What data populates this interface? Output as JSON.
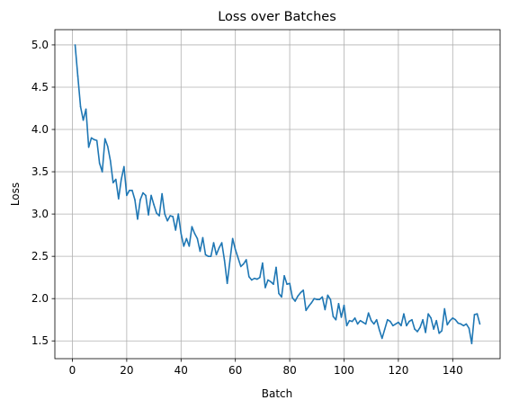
{
  "chart_data": {
    "type": "line",
    "title": "Loss over Batches",
    "xlabel": "Batch",
    "ylabel": "Loss",
    "xlim": [
      -6.45,
      157.45
    ],
    "ylim": [
      1.29,
      5.18
    ],
    "xticks": [
      0,
      20,
      40,
      60,
      80,
      100,
      120,
      140
    ],
    "yticks": [
      1.5,
      2.0,
      2.5,
      3.0,
      3.5,
      4.0,
      4.5,
      5.0
    ],
    "ytick_labels": [
      "1.5",
      "2.0",
      "2.5",
      "3.0",
      "3.5",
      "4.0",
      "4.5",
      "5.0"
    ],
    "grid": true,
    "line_color": "#1f77b4",
    "x_start": 1,
    "values": [
      5.0,
      4.63,
      4.27,
      4.11,
      4.24,
      3.79,
      3.9,
      3.88,
      3.87,
      3.6,
      3.5,
      3.89,
      3.8,
      3.63,
      3.37,
      3.41,
      3.18,
      3.41,
      3.56,
      3.22,
      3.28,
      3.28,
      3.17,
      2.94,
      3.17,
      3.25,
      3.22,
      2.99,
      3.22,
      3.11,
      3.01,
      2.98,
      3.24,
      3.0,
      2.92,
      2.98,
      2.97,
      2.81,
      3.0,
      2.77,
      2.62,
      2.71,
      2.62,
      2.85,
      2.77,
      2.71,
      2.56,
      2.72,
      2.52,
      2.5,
      2.5,
      2.66,
      2.52,
      2.6,
      2.66,
      2.45,
      2.18,
      2.45,
      2.71,
      2.58,
      2.48,
      2.38,
      2.41,
      2.46,
      2.26,
      2.22,
      2.24,
      2.23,
      2.25,
      2.42,
      2.13,
      2.22,
      2.2,
      2.17,
      2.37,
      2.06,
      2.02,
      2.27,
      2.17,
      2.18,
      2.01,
      1.97,
      2.03,
      2.07,
      2.1,
      1.86,
      1.91,
      1.95,
      2.0,
      1.99,
      1.99,
      2.02,
      1.87,
      2.04,
      1.99,
      1.79,
      1.75,
      1.94,
      1.78,
      1.92,
      1.68,
      1.74,
      1.73,
      1.77,
      1.7,
      1.74,
      1.72,
      1.7,
      1.83,
      1.74,
      1.7,
      1.75,
      1.63,
      1.53,
      1.64,
      1.75,
      1.73,
      1.68,
      1.7,
      1.72,
      1.68,
      1.82,
      1.68,
      1.73,
      1.75,
      1.64,
      1.61,
      1.66,
      1.75,
      1.6,
      1.82,
      1.77,
      1.64,
      1.74,
      1.59,
      1.62,
      1.88,
      1.69,
      1.74,
      1.77,
      1.75,
      1.71,
      1.7,
      1.68,
      1.7,
      1.65,
      1.47,
      1.81,
      1.82,
      1.7
    ]
  }
}
